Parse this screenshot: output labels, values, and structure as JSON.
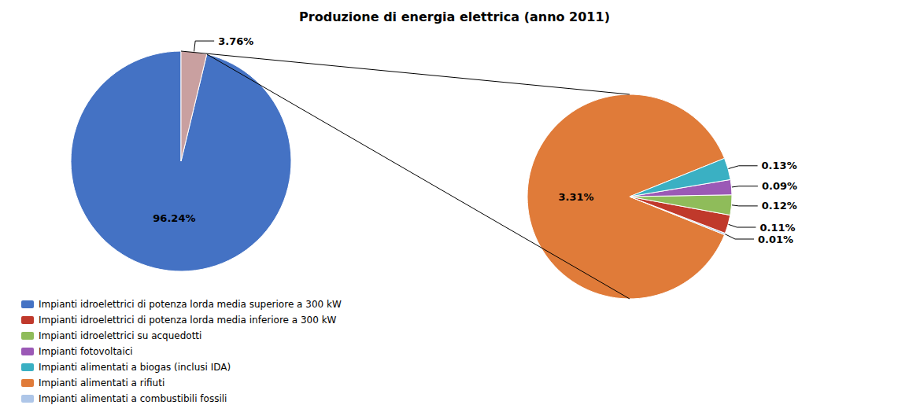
{
  "chart_data": [
    {
      "type": "pie",
      "title": "Produzione di energia elettrica (anno 2011)",
      "categories": [
        "Impianti idroelettrici di potenza lorda media superiore a 300 kW",
        null
      ],
      "values": [
        96.24,
        3.76
      ],
      "value_labels": [
        "96.24%",
        "3.76%"
      ],
      "colors": [
        "#4472c4",
        "#c9a0a0"
      ],
      "data_labels": true,
      "legend": "lower left",
      "legend_entries": [
        "Impianti idroelettrici di potenza lorda media superiore a 300 kW",
        "Impianti idroelettrici di potenza lorda media inferiore a 300 kW",
        "Impianti idroelettrici su acquedotti",
        "Impianti fotovoltaici",
        "Impianti alimentati a biogas (inclusi IDA)",
        "Impianti alimentati a rifiuti",
        "Impianti alimentati a combustibili fossili"
      ]
    },
    {
      "type": "pie",
      "categories": [
        "Impianti alimentati a rifiuti",
        "Impianti alimentati a combustibili fossili",
        "Impianti idroelettrici di potenza lorda media inferiore a 300 kW",
        "Impianti idroelettrici su acquedotti",
        "Impianti fotovoltaici",
        "Impianti alimentati a biogas (inclusi IDA)"
      ],
      "values": [
        3.31,
        0.01,
        0.11,
        0.12,
        0.09,
        0.13
      ],
      "value_labels": [
        "3.31%",
        "0.01%",
        "0.11%",
        "0.12%",
        "0.09%",
        "0.13%"
      ],
      "colors": [
        "#e07b39",
        "#aec6e8",
        "#c0392b",
        "#8fbc5a",
        "#9b59b6",
        "#3ab0c3"
      ],
      "data_labels": true
    }
  ]
}
